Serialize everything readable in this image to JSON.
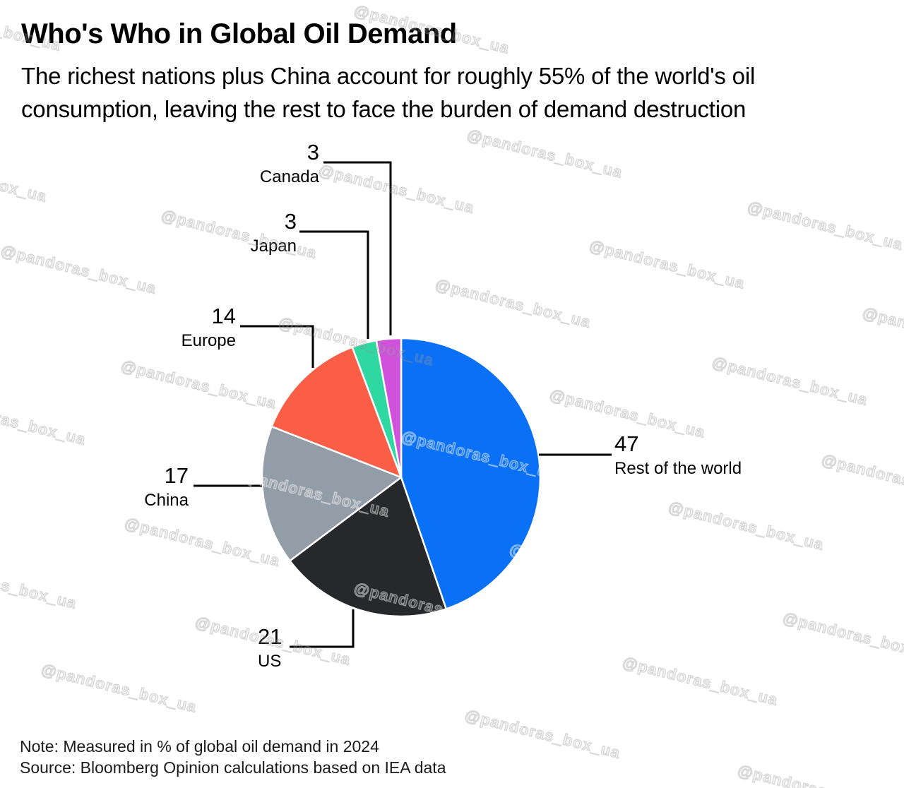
{
  "chart_data": {
    "type": "pie",
    "title": "Who's Who in Global Oil Demand",
    "subtitle": "The richest nations plus China account for roughly 55% of the world's oil consumption, leaving the rest to face the burden of demand destruction",
    "unit": "%",
    "start_angle": "12 o'clock",
    "direction": "clockwise",
    "legend_position": "callout-labels",
    "slices": [
      {
        "label": "Rest of the world",
        "value": 47,
        "color": "#0A70F5"
      },
      {
        "label": "US",
        "value": 21,
        "color": "#272829"
      },
      {
        "label": "China",
        "value": 17,
        "color": "#939DA8"
      },
      {
        "label": "Europe",
        "value": 14,
        "color": "#FB5E47"
      },
      {
        "label": "Japan",
        "value": 3,
        "color": "#2FD8A0"
      },
      {
        "label": "Canada",
        "value": 3,
        "color": "#CF51DC"
      }
    ],
    "note": "Note: Measured in % of global oil demand in 2024",
    "source": "Source: Bloomberg Opinion calculations based on IEA data"
  },
  "watermark": {
    "text": "@pandoras_box_ua"
  }
}
